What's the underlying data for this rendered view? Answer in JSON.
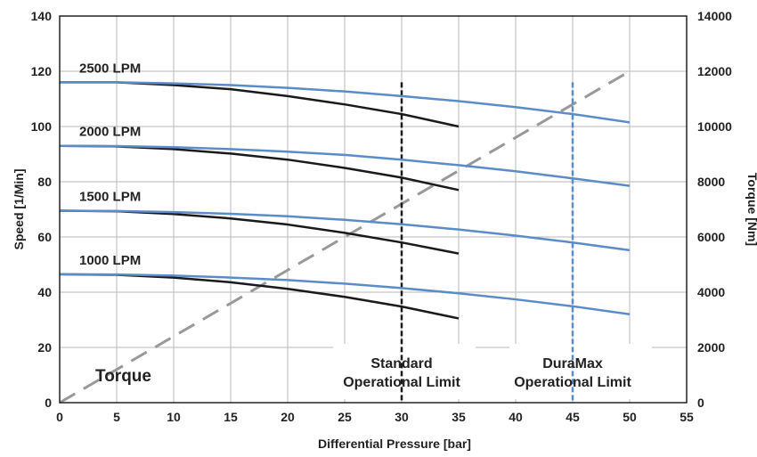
{
  "chart_data": {
    "type": "line",
    "xlabel": "Differential Pressure [bar]",
    "ylabel_left": "Speed  [1/Min]",
    "ylabel_right": "Torque [Nm]",
    "xlim": [
      0,
      55
    ],
    "ylim_left": [
      0,
      140
    ],
    "ylim_right": [
      0,
      14000
    ],
    "x_ticks": [
      0,
      5,
      10,
      15,
      20,
      25,
      30,
      35,
      40,
      45,
      50,
      55
    ],
    "y_left_ticks": [
      0,
      20,
      40,
      60,
      80,
      100,
      120,
      140
    ],
    "y_right_ticks": [
      0,
      2000,
      4000,
      6000,
      8000,
      10000,
      12000,
      14000
    ],
    "grid": true,
    "colors": {
      "standard": "#1a1a1a",
      "duramax": "#5b8cc8",
      "torque": "#999999"
    },
    "flow_labels": [
      {
        "text": "2500 LPM",
        "series_index": 0
      },
      {
        "text": "2000 LPM",
        "series_index": 1
      },
      {
        "text": "1500 LPM",
        "series_index": 2
      },
      {
        "text": "1000 LPM",
        "series_index": 3
      }
    ],
    "standard_series": [
      {
        "x": [
          0,
          5,
          10,
          15,
          20,
          25,
          30,
          35
        ],
        "y": [
          116,
          116,
          115,
          113.5,
          111,
          108,
          104.5,
          100
        ]
      },
      {
        "x": [
          0,
          5,
          10,
          15,
          20,
          25,
          30,
          35
        ],
        "y": [
          93,
          92.8,
          91.8,
          90.2,
          88,
          85,
          81.5,
          77
        ]
      },
      {
        "x": [
          0,
          5,
          10,
          15,
          20,
          25,
          30,
          35
        ],
        "y": [
          69.5,
          69.3,
          68.3,
          66.7,
          64.5,
          61.5,
          58,
          54
        ]
      },
      {
        "x": [
          0,
          5,
          10,
          15,
          20,
          25,
          30,
          35
        ],
        "y": [
          46.5,
          46.3,
          45.3,
          43.6,
          41.2,
          38.3,
          34.8,
          30.5
        ]
      }
    ],
    "duramax_series": [
      {
        "x": [
          0,
          5,
          10,
          15,
          20,
          25,
          30,
          35,
          40,
          45,
          50
        ],
        "y": [
          116,
          116,
          115.6,
          115,
          114,
          112.7,
          111,
          109.2,
          107,
          104.5,
          101.5
        ]
      },
      {
        "x": [
          0,
          5,
          10,
          15,
          20,
          25,
          30,
          35,
          40,
          45,
          50
        ],
        "y": [
          93,
          92.9,
          92.5,
          91.8,
          90.9,
          89.7,
          88,
          86,
          83.8,
          81.2,
          78.5
        ]
      },
      {
        "x": [
          0,
          5,
          10,
          15,
          20,
          25,
          30,
          35,
          40,
          45,
          50
        ],
        "y": [
          69.5,
          69.4,
          69,
          68.4,
          67.5,
          66.2,
          64.6,
          62.7,
          60.5,
          58,
          55.2
        ]
      },
      {
        "x": [
          0,
          5,
          10,
          15,
          20,
          25,
          30,
          35,
          40,
          45,
          50
        ],
        "y": [
          46.5,
          46.4,
          46,
          45.3,
          44.4,
          43.1,
          41.5,
          39.6,
          37.4,
          34.9,
          32
        ]
      }
    ],
    "torque_line": {
      "x": [
        0,
        50
      ],
      "y": [
        0,
        12000
      ],
      "axis": "right",
      "label": "Torque"
    },
    "limits": [
      {
        "x": 30,
        "label_lines": [
          "Standard",
          "Operational Limit"
        ],
        "color": "standard"
      },
      {
        "x": 45,
        "label_lines": [
          "DuraMax",
          "Operational Limit"
        ],
        "color": "duramax"
      }
    ]
  }
}
